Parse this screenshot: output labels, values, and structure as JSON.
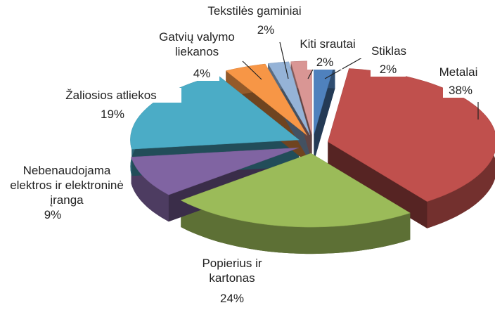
{
  "chart_data": {
    "type": "pie3d",
    "categories": [
      "Stiklas",
      "Metalai",
      "Popierius ir kartonas",
      "Nebenaudojama elektros ir elektroninė įranga",
      "Žaliosios atliekos",
      "Gatvių valymo liekanos",
      "Tekstilės gaminiai",
      "Kiti srautai"
    ],
    "values": [
      2,
      38,
      24,
      9,
      19,
      4,
      2,
      2
    ],
    "value_labels": [
      "2%",
      "38%",
      "24%",
      "9%",
      "19%",
      "4%",
      "2%",
      "2%"
    ],
    "colors": [
      "#4f81bd",
      "#c0504d",
      "#9bbb59",
      "#8064a2",
      "#4bacc6",
      "#f79646",
      "#95b3d7",
      "#d99694"
    ]
  }
}
